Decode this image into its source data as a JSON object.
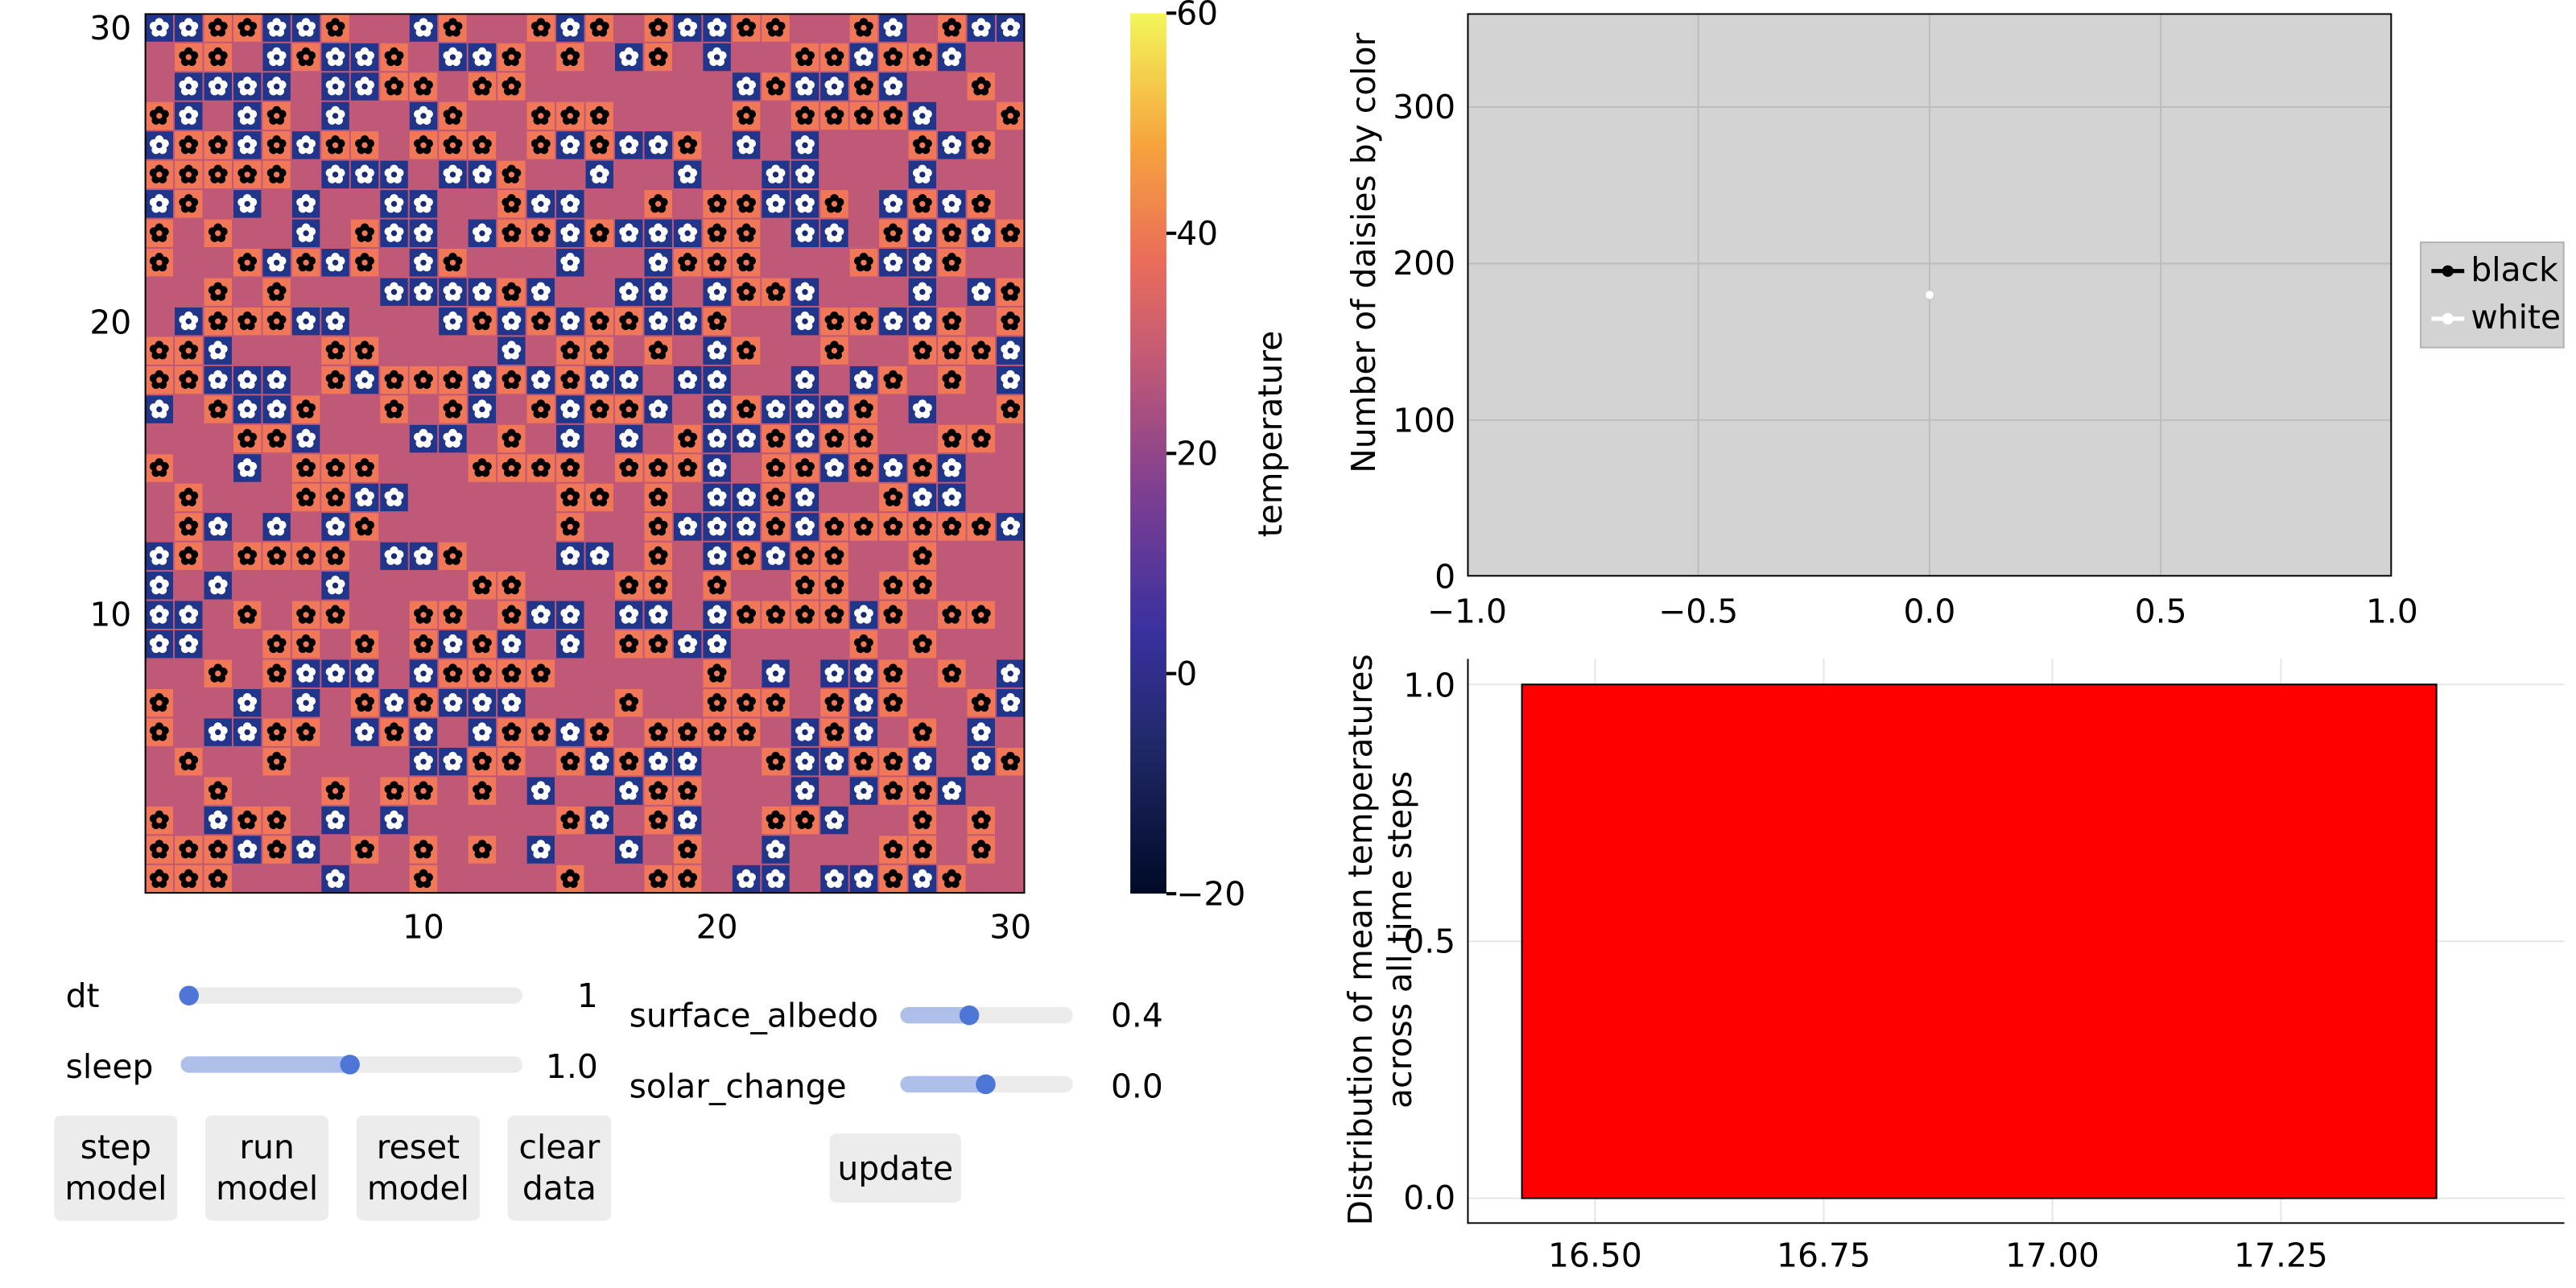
{
  "grid_plot": {
    "x_ticks": [
      "10",
      "20",
      "30"
    ],
    "y_ticks": [
      "10",
      "20",
      "30"
    ],
    "grid_size": 30,
    "colors": {
      "ground": "#c05877",
      "white_tile": "#21358a",
      "black_tile": "#f07858"
    }
  },
  "colorbar": {
    "label": "temperature",
    "ticks": [
      "60",
      "40",
      "20",
      "0",
      "−20"
    ],
    "range": [
      -20,
      60
    ]
  },
  "controls": {
    "sliders_left": [
      {
        "label": "dt",
        "value": "1",
        "fraction": 0.02
      },
      {
        "label": "sleep",
        "value": "1.0",
        "fraction": 0.5
      }
    ],
    "sliders_right": [
      {
        "label": "surface_albedo",
        "value": "0.4",
        "fraction": 0.4
      },
      {
        "label": "solar_change",
        "value": "0.0",
        "fraction": 0.5
      }
    ],
    "buttons": [
      {
        "line1": "step",
        "line2": "model"
      },
      {
        "line1": "run",
        "line2": "model"
      },
      {
        "line1": "reset",
        "line2": "model"
      },
      {
        "line1": "clear",
        "line2": "data"
      }
    ],
    "update_label": "update"
  },
  "chart_data": [
    {
      "type": "scatter",
      "title": "",
      "xlabel": "",
      "ylabel": "Number of daisies by color",
      "xlim": [
        -1.0,
        1.0
      ],
      "ylim": [
        0,
        360
      ],
      "x_ticks": [
        "−1.0",
        "−0.5",
        "0.0",
        "0.5",
        "1.0"
      ],
      "y_ticks": [
        "0",
        "100",
        "200",
        "300"
      ],
      "series": [
        {
          "name": "black",
          "color": "#000000",
          "x": [
            0.0
          ],
          "values": [
            180
          ]
        },
        {
          "name": "white",
          "color": "#ffffff",
          "x": [
            0.0
          ],
          "values": [
            180
          ]
        }
      ],
      "legend": "right"
    },
    {
      "type": "bar",
      "title": "",
      "xlabel": "",
      "ylabel_line1": "Distribution of mean temperatures",
      "ylabel_line2": "across all time steps",
      "xlim": [
        16.36,
        17.56
      ],
      "ylim": [
        -0.05,
        1.05
      ],
      "x_ticks": [
        "16.50",
        "16.75",
        "17.00",
        "17.25"
      ],
      "y_ticks": [
        "0.0",
        "0.5",
        "1.0"
      ],
      "bins": [
        {
          "start": 16.42,
          "end": 17.42,
          "value": 1.0
        }
      ],
      "color": "#ff0000"
    }
  ]
}
